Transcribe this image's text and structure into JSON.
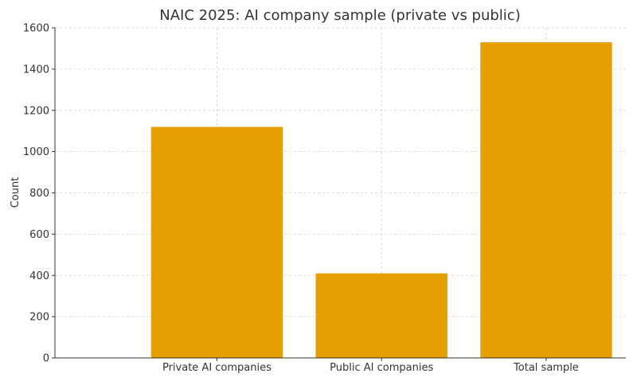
{
  "chart_data": {
    "type": "bar",
    "title": "NAIC 2025: AI company sample (private vs public)",
    "xlabel": "",
    "ylabel": "Count",
    "categories": [
      "Private AI companies",
      "Public AI companies",
      "Total sample"
    ],
    "values": [
      1120,
      410,
      1530
    ],
    "ylim": [
      0,
      1600
    ],
    "yticks": [
      0,
      200,
      400,
      600,
      800,
      1000,
      1200,
      1400,
      1600
    ],
    "grid": true,
    "bar_color": "#E69F00"
  }
}
